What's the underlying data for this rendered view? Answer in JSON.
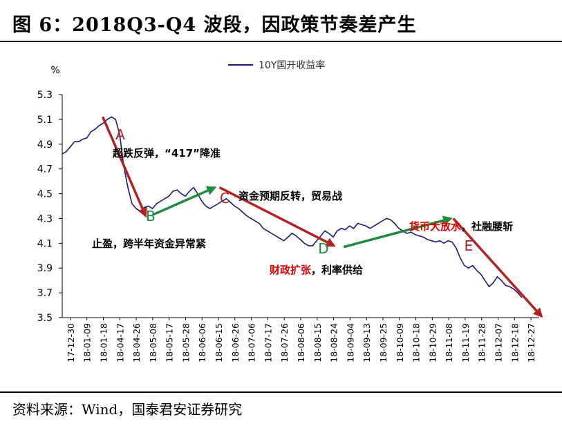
{
  "figure": {
    "title": "图 6：2018Q3-Q4 波段，因政策节奏差产生",
    "source": "资料来源：Wind，国泰君安证券研究"
  },
  "chart_data": {
    "type": "line",
    "unit_label": "%",
    "legend": "top-center",
    "grid": false,
    "ylim": [
      3.5,
      5.3
    ],
    "yticks": [
      3.5,
      3.7,
      3.9,
      4.1,
      4.3,
      4.5,
      4.7,
      4.9,
      5.1,
      5.3
    ],
    "ytick_labels": [
      "3.5",
      "3.7",
      "3.9",
      "4.1",
      "4.3",
      "4.5",
      "4.7",
      "4.9",
      "5.1",
      "5.3"
    ],
    "xtick_labels": [
      "17-12-30",
      "18-01-09",
      "18-01-18",
      "18-04-17",
      "18-04-26",
      "18-05-08",
      "18-05-17",
      "18-05-28",
      "18-06-06",
      "18-06-15",
      "18-06-26",
      "18-07-06",
      "18-07-17",
      "18-07-26",
      "18-08-06",
      "18-08-15",
      "18-08-24",
      "18-09-04",
      "18-09-13",
      "18-09-25",
      "18-10-09",
      "18-10-18",
      "18-10-29",
      "18-11-08",
      "18-11-19",
      "18-11-28",
      "18-12-07",
      "18-12-18",
      "18-12-27"
    ],
    "series": [
      {
        "name": "10Y国开收益率",
        "color": "#1a1a7a",
        "values": [
          4.82,
          4.84,
          4.88,
          4.92,
          4.92,
          4.94,
          4.95,
          5.0,
          5.02,
          5.05,
          5.07,
          5.1,
          5.12,
          5.1,
          4.98,
          4.72,
          4.55,
          4.42,
          4.38,
          4.36,
          4.39,
          4.4,
          4.38,
          4.42,
          4.44,
          4.46,
          4.48,
          4.52,
          4.53,
          4.5,
          4.48,
          4.52,
          4.55,
          4.5,
          4.44,
          4.4,
          4.38,
          4.4,
          4.42,
          4.44,
          4.46,
          4.43,
          4.4,
          4.38,
          4.35,
          4.32,
          4.3,
          4.28,
          4.26,
          4.22,
          4.2,
          4.18,
          4.16,
          4.14,
          4.12,
          4.15,
          4.18,
          4.16,
          4.13,
          4.1,
          4.08,
          4.08,
          4.12,
          4.16,
          4.2,
          4.18,
          4.15,
          4.2,
          4.22,
          4.21,
          4.24,
          4.22,
          4.26,
          4.25,
          4.24,
          4.22,
          4.24,
          4.26,
          4.28,
          4.3,
          4.29,
          4.26,
          4.22,
          4.2,
          4.18,
          4.19,
          4.17,
          4.16,
          4.15,
          4.13,
          4.12,
          4.11,
          4.12,
          4.1,
          4.12,
          4.11,
          4.06,
          3.98,
          3.92,
          3.9,
          3.92,
          3.88,
          3.85,
          3.8,
          3.75,
          3.78,
          3.83,
          3.8,
          3.76,
          3.75,
          3.73,
          3.7,
          3.66
        ]
      }
    ],
    "annotations": [
      {
        "letter": "A",
        "text": "超跌反弹，“417”降准",
        "arrow_from": [
          0.085,
          5.12
        ],
        "arrow_to": [
          0.175,
          4.32
        ],
        "arrow_color": "#b22222",
        "text_color": "#000000"
      },
      {
        "letter": "B",
        "text": "止盈，跨半年资金异常紧",
        "arrow_from": [
          0.19,
          4.33
        ],
        "arrow_to": [
          0.32,
          4.55
        ],
        "arrow_color": "#1e8a3c",
        "text_color": "#000000"
      },
      {
        "letter": "C",
        "text": "资金预期反转，贸易战",
        "arrow_from": [
          0.33,
          4.55
        ],
        "arrow_to": [
          0.57,
          4.08
        ],
        "arrow_color": "#b22222",
        "text_color": "#000000"
      },
      {
        "letter": "D",
        "text_parts": [
          {
            "text": "财政扩张",
            "color": "#e00000"
          },
          {
            "text": "，利率供给",
            "color": "#000000"
          }
        ],
        "arrow_from": [
          0.59,
          4.07
        ],
        "arrow_to": [
          0.815,
          4.3
        ],
        "arrow_color": "#1e8a3c"
      },
      {
        "letter": "E",
        "text_parts": [
          {
            "text": "货币大放水",
            "color": "#e00000"
          },
          {
            "text": "，社融腰斩",
            "color": "#000000"
          }
        ],
        "arrow_from": [
          0.82,
          4.3
        ],
        "arrow_to": [
          1.005,
          3.51
        ],
        "arrow_color": "#b22222"
      }
    ]
  }
}
